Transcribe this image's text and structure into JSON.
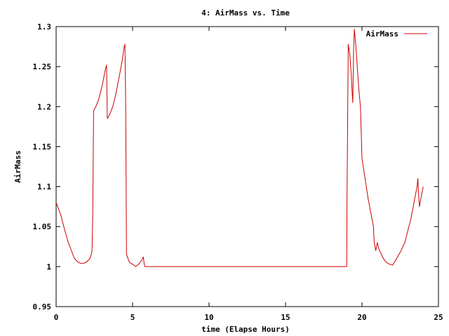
{
  "chart_data": {
    "type": "line",
    "title": "4: AirMass vs. Time",
    "xlabel": "time (Elapse Hours)",
    "ylabel": "AirMass",
    "xlim": [
      0,
      25
    ],
    "ylim": [
      0.95,
      1.3
    ],
    "xticks": [
      0,
      5,
      10,
      15,
      20,
      25
    ],
    "xtick_labels": [
      "0",
      "5",
      "10",
      "15",
      "20",
      "25"
    ],
    "yticks": [
      0.95,
      1,
      1.05,
      1.1,
      1.15,
      1.2,
      1.25,
      1.3
    ],
    "ytick_labels": [
      "0.95",
      "1",
      "1.05",
      "1.1",
      "1.15",
      "1.2",
      "1.25",
      "1.3"
    ],
    "grid": false,
    "legend": "top-right",
    "series": [
      {
        "name": "AirMass",
        "color": "#cc0000",
        "x": [
          0.0,
          0.3,
          0.5,
          0.8,
          1.0,
          1.2,
          1.4,
          1.6,
          1.8,
          2.0,
          2.2,
          2.3,
          2.35,
          2.4,
          2.45,
          2.6,
          2.8,
          3.0,
          3.2,
          3.3,
          3.35,
          3.5,
          3.7,
          3.9,
          4.1,
          4.3,
          4.45,
          4.5,
          4.55,
          4.6,
          4.8,
          5.0,
          5.2,
          5.4,
          5.6,
          5.7,
          5.75,
          5.8,
          19.0,
          19.02,
          19.1,
          19.2,
          19.3,
          19.35,
          19.4,
          19.45,
          19.5,
          19.6,
          19.8,
          19.9,
          20.0,
          20.2,
          20.4,
          20.6,
          20.75,
          20.8,
          20.9,
          21.0,
          21.1,
          21.2,
          21.4,
          21.6,
          21.8,
          22.0,
          22.2,
          22.5,
          22.8,
          23.0,
          23.2,
          23.4,
          23.6,
          23.65,
          23.7,
          23.75,
          23.9,
          24.0
        ],
        "y": [
          1.08,
          1.065,
          1.05,
          1.03,
          1.02,
          1.01,
          1.006,
          1.004,
          1.004,
          1.006,
          1.01,
          1.015,
          1.02,
          1.07,
          1.195,
          1.2,
          1.21,
          1.225,
          1.245,
          1.252,
          1.185,
          1.19,
          1.2,
          1.215,
          1.235,
          1.255,
          1.275,
          1.278,
          1.2,
          1.015,
          1.005,
          1.003,
          1.0,
          1.003,
          1.008,
          1.012,
          1.004,
          1.0,
          1.0,
          1.08,
          1.278,
          1.265,
          1.24,
          1.22,
          1.205,
          1.27,
          1.297,
          1.275,
          1.22,
          1.2,
          1.135,
          1.11,
          1.085,
          1.065,
          1.05,
          1.03,
          1.02,
          1.03,
          1.022,
          1.018,
          1.01,
          1.005,
          1.003,
          1.002,
          1.008,
          1.018,
          1.03,
          1.045,
          1.06,
          1.08,
          1.1,
          1.11,
          1.09,
          1.075,
          1.09,
          1.1
        ]
      }
    ]
  }
}
